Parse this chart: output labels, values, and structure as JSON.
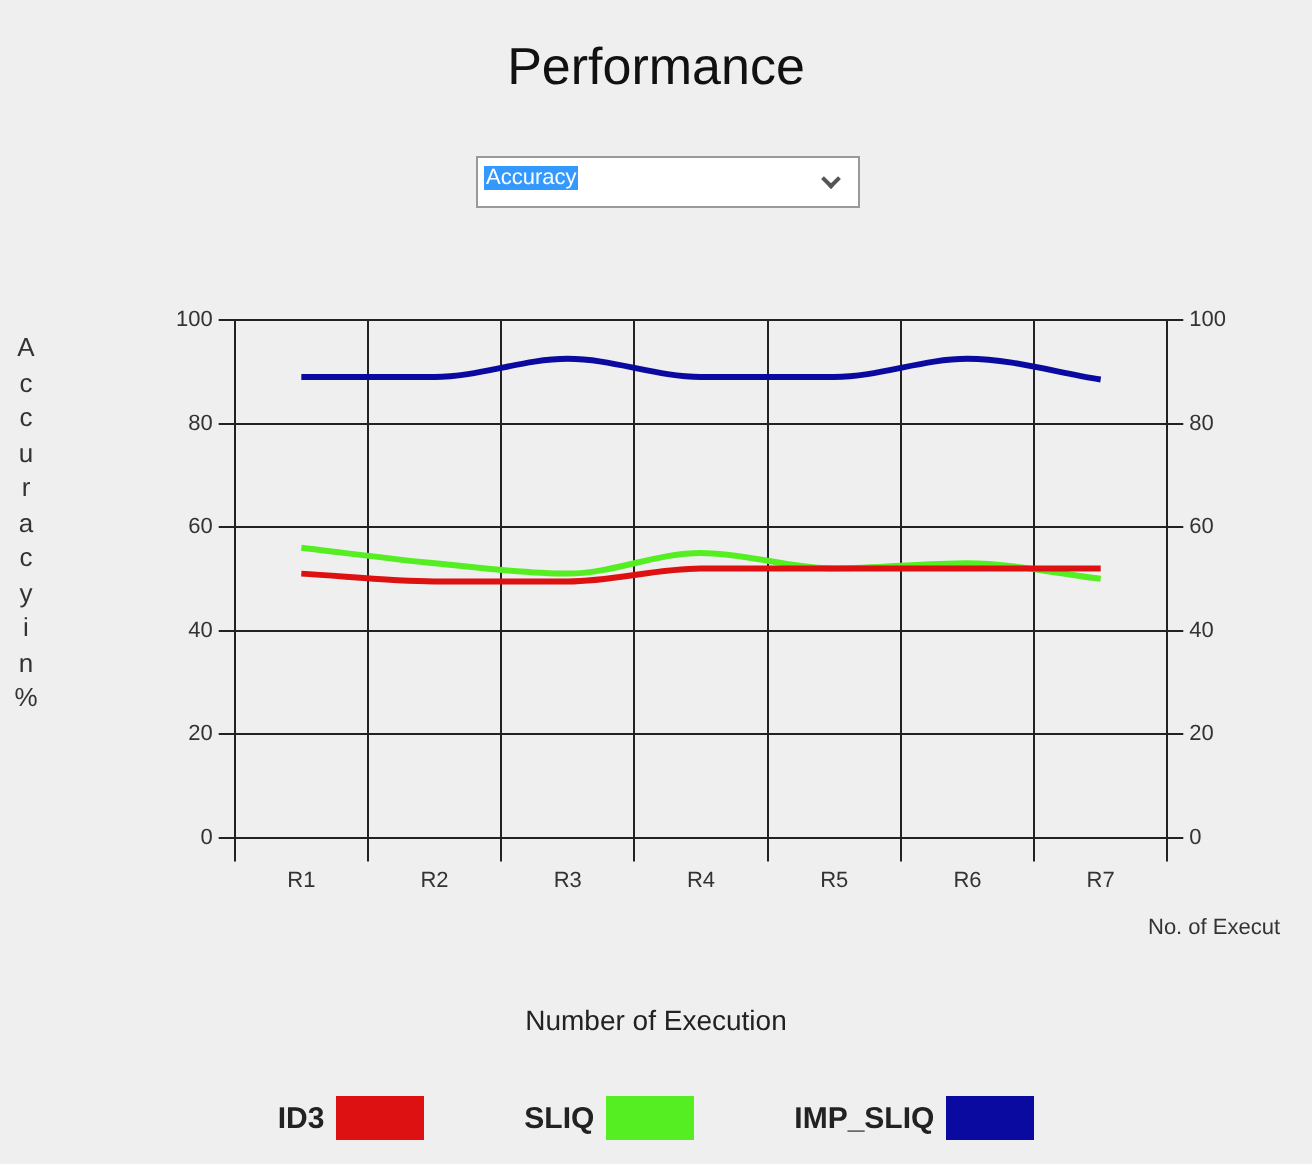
{
  "chart_data": {
    "type": "line",
    "title": "Performance",
    "ylabel": "Accuracy in %",
    "xlabel": "Number of Execution",
    "annotations": [
      "Accuracy",
      "No. of Execut"
    ],
    "categories": [
      "R1",
      "R2",
      "R3",
      "R4",
      "R5",
      "R6",
      "R7"
    ],
    "series": [
      {
        "name": "ID3",
        "color": "#dd1111",
        "values": [
          51,
          49.5,
          49.5,
          52,
          52,
          52,
          52
        ]
      },
      {
        "name": "SLIQ",
        "color": "#55ee22",
        "values": [
          56,
          53,
          51,
          55,
          52,
          53,
          50
        ]
      },
      {
        "name": "IMP_SLIQ",
        "color": "#0a0aa0",
        "values": [
          89,
          89,
          92.5,
          89,
          89,
          92.5,
          88.5
        ]
      }
    ],
    "ylim": [
      0,
      100
    ],
    "yticks": [
      0,
      20,
      40,
      60,
      80,
      100
    ],
    "y2lim": [
      0,
      100
    ],
    "y2ticks": [
      0,
      20,
      40,
      60,
      80,
      100
    ],
    "grid": true,
    "legend": "bottom",
    "marker": "none",
    "line_style": "solid"
  }
}
